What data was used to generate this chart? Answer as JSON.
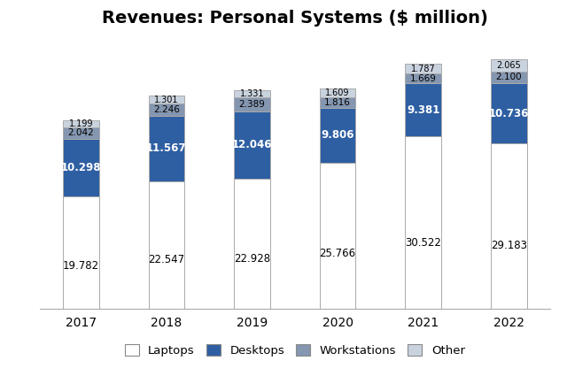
{
  "title": "Revenues: Personal Systems ($ million)",
  "years": [
    "2017",
    "2018",
    "2019",
    "2020",
    "2021",
    "2022"
  ],
  "laptops": [
    19.782,
    22.547,
    22.928,
    25.766,
    30.522,
    29.183
  ],
  "desktops": [
    10.298,
    11.567,
    12.046,
    9.806,
    9.381,
    10.736
  ],
  "workstations": [
    2.042,
    2.246,
    2.389,
    1.816,
    1.669,
    2.1
  ],
  "other": [
    1.199,
    1.301,
    1.331,
    1.609,
    1.787,
    2.065
  ],
  "color_laptops": "#ffffff",
  "color_desktops": "#2e5fa3",
  "color_workstations": "#8496b0",
  "color_other": "#c9d3df",
  "edge_color": "#aaaaaa",
  "legend_labels": [
    "Laptops",
    "Desktops",
    "Workstations",
    "Other"
  ],
  "title_fontsize": 14,
  "label_fontsize": 8.5,
  "tick_fontsize": 10,
  "legend_fontsize": 9.5,
  "bar_width": 0.42,
  "ylim": [
    0,
    48
  ]
}
